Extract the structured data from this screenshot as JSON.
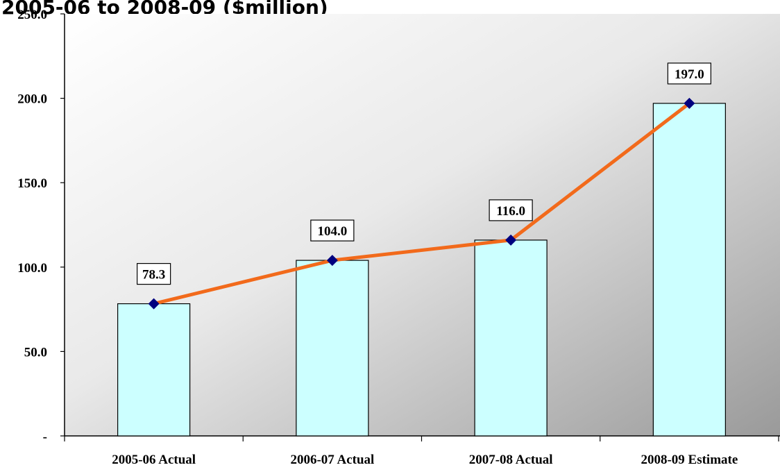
{
  "title": "2005-06 to 2008-09 ($million)",
  "chart_data": {
    "type": "bar",
    "title": "2005-06 to 2008-09 ($million)",
    "categories": [
      "2005-06 Actual",
      "2006-07 Actual",
      "2007-08 Actual",
      "2008-09 Estimate"
    ],
    "values": [
      78.3,
      104.0,
      116.0,
      197.0
    ],
    "data_labels": [
      "78.3",
      "104.0",
      "116.0",
      "197.0"
    ],
    "overlay_line": {
      "type": "line",
      "values": [
        78.3,
        104.0,
        116.0,
        197.0
      ],
      "color": "#f26a1b",
      "marker_color": "#00007f",
      "marker": "diamond"
    },
    "ylim": [
      0,
      250
    ],
    "yticks": [
      0,
      50,
      100,
      150,
      200,
      250
    ],
    "ytick_labels": [
      "-",
      "50.0",
      "100.0",
      "150.0",
      "200.0",
      "250.0"
    ],
    "xlabel": "",
    "ylabel": "",
    "grid": false,
    "legend": "none",
    "bar_color": "#ccffff",
    "plot_background": "gradient white-to-gray"
  }
}
